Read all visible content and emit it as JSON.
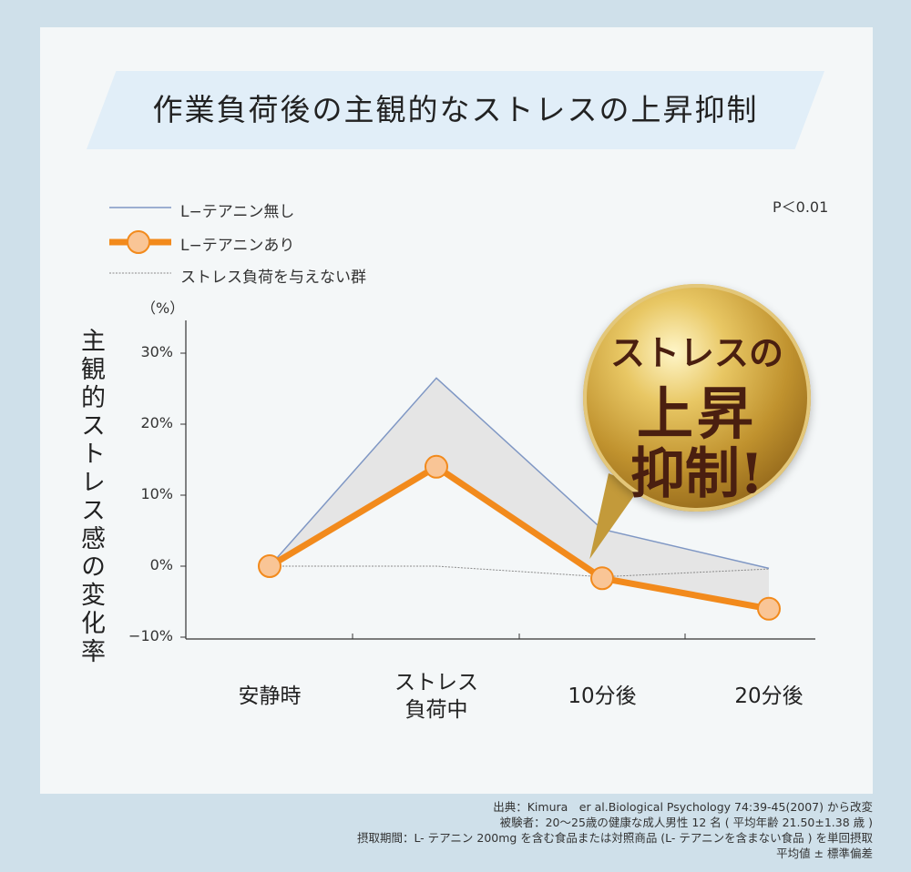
{
  "title": "作業負荷後の主観的なストレスの上昇抑制",
  "legend": {
    "without": "L−テアニン無し",
    "with": "L−テアニンあり",
    "nostress": "ストレス負荷を与えない群"
  },
  "p_value": "P＜0.01",
  "unit": "（%）",
  "ylabel": "主観的ストレス感の変化率",
  "badge": {
    "line1": "ストレスの",
    "line2": "上昇",
    "line3": "抑制!"
  },
  "x_labels": [
    "安静時",
    "ストレス負荷中",
    "10分後",
    "20分後"
  ],
  "x_label_lines": [
    [
      "安静時"
    ],
    [
      "ストレス",
      "負荷中"
    ],
    [
      "10分後"
    ],
    [
      "20分後"
    ]
  ],
  "y_tick_labels": [
    "30%",
    "20%",
    "10%",
    "0%",
    "−10%"
  ],
  "source": [
    "出典：Kimura　er al.Biological Psychology 74:39-45(2007) から改変",
    "被験者：20〜25歳の健康な成人男性 12 名 ( 平均年齢 21.50±1.38 歳 )",
    "摂取期間：L- テアニン 200mg を含む食品または対照商品 (L- テアニンを含まない食品 ) を単回摂取",
    "平均値 ± 標準偏差"
  ],
  "colors": {
    "without": "#7f97c4",
    "with": "#f28a1c",
    "marker_fill": "#f9c596",
    "nostress": "#8a8a8a",
    "shade": "#e5e5e5"
  },
  "chart_data": {
    "type": "line",
    "categories": [
      "安静時",
      "ストレス負荷中",
      "10分後",
      "20分後"
    ],
    "ylim": [
      -10,
      35
    ],
    "yticks": [
      30,
      20,
      10,
      0,
      -10
    ],
    "ylabel": "主観的ストレス感の変化率",
    "unit": "%",
    "series": [
      {
        "name": "L−テアニン無し",
        "values": [
          0,
          26.5,
          5.2,
          -0.3
        ]
      },
      {
        "name": "L−テアニンあり",
        "values": [
          0,
          14,
          -1.7,
          -6
        ]
      },
      {
        "name": "ストレス負荷を与えない群",
        "values": [
          0,
          0,
          -1.5,
          -0.4
        ]
      }
    ]
  }
}
